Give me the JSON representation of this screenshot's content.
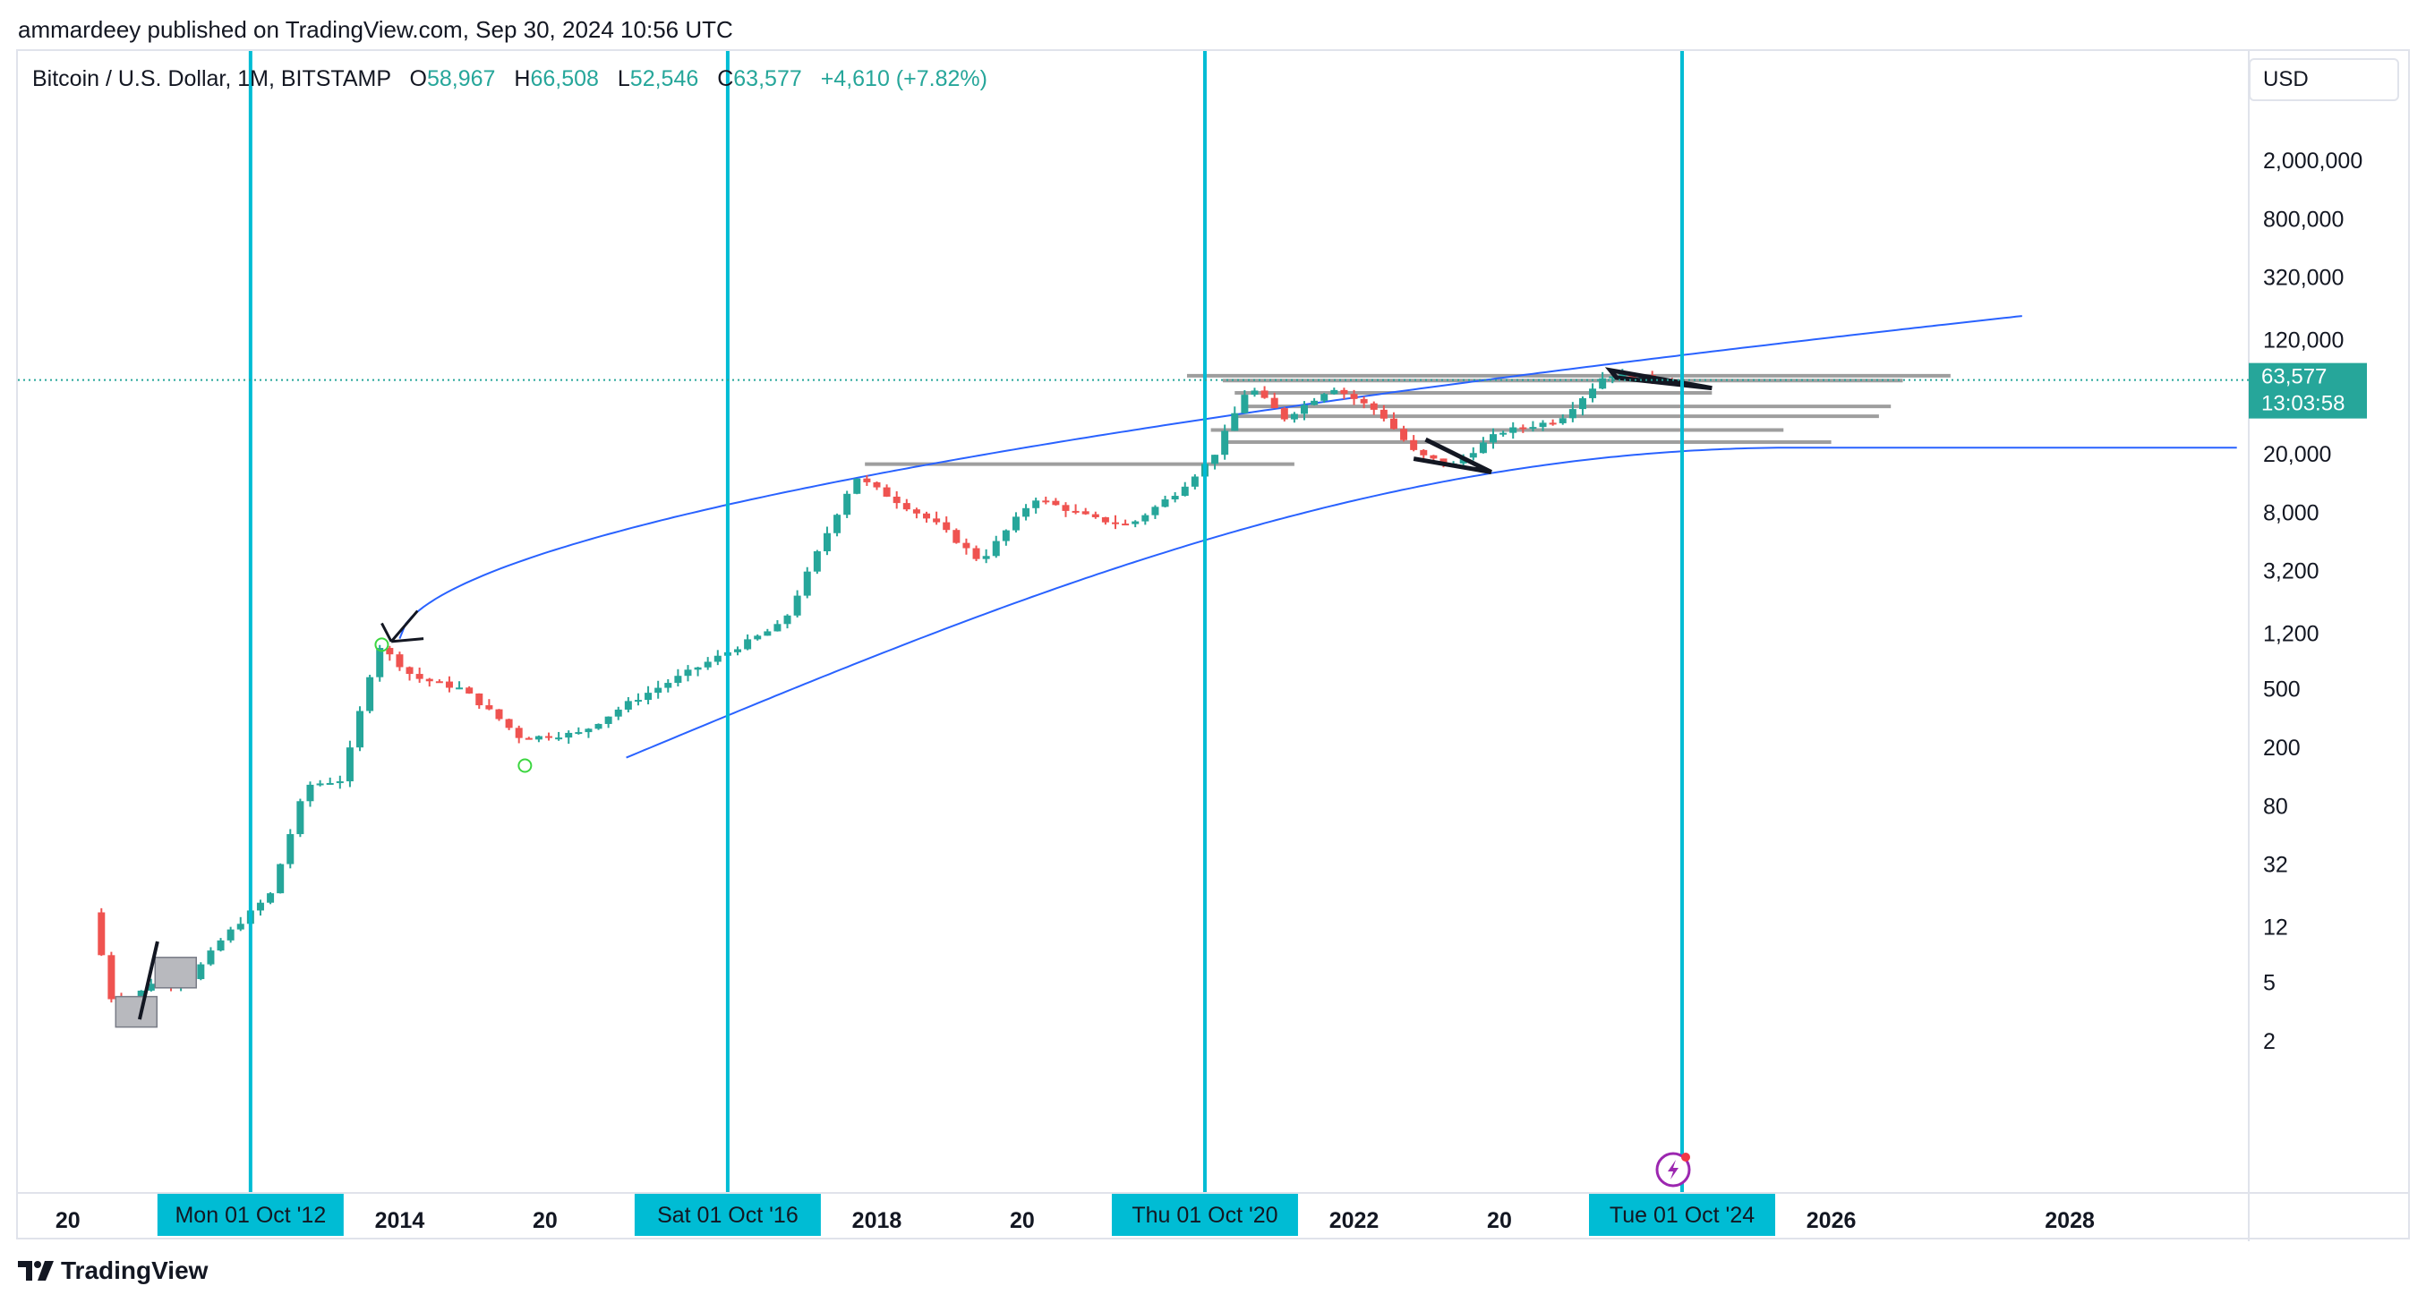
{
  "header": {
    "published_by": "ammardeey published on TradingView.com, Sep 30, 2024 10:56 UTC"
  },
  "legend": {
    "symbol": "Bitcoin / U.S. Dollar, 1M, BITSTAMP",
    "open_label": "O",
    "open": "58,967",
    "high_label": "H",
    "high": "66,508",
    "low_label": "L",
    "low": "52,546",
    "close_label": "C",
    "close": "63,577",
    "change": "+4,610 (+7.82%)"
  },
  "currency_button": "USD",
  "brand": "TradingView",
  "price_label": {
    "value": "63,577",
    "countdown": "13:03:58"
  },
  "colors": {
    "up": "#26a69a",
    "down": "#ef5350",
    "cycle_line": "#00bcd4",
    "curve": "#2962ff",
    "level": "#9e9e9e",
    "label_bg": "#00bcd4"
  },
  "chart_data": {
    "type": "candlestick",
    "title": "Bitcoin / U.S. Dollar, 1M, BITSTAMP",
    "scale": "log",
    "y_ticks": [
      "2,000,000",
      "800,000",
      "320,000",
      "120,000",
      "20,000",
      "8,000",
      "3,200",
      "1,200",
      "500",
      "200",
      "80",
      "32",
      "12",
      "5",
      "2"
    ],
    "y_tick_values": [
      2000000,
      800000,
      320000,
      120000,
      20000,
      8000,
      3200,
      1200,
      500,
      200,
      80,
      32,
      12,
      5,
      2
    ],
    "x_ticks": [
      "2014",
      "2018",
      "2022",
      "2026",
      "2028"
    ],
    "x_tick_years": [
      2014,
      2018,
      2022,
      2026,
      2028
    ],
    "x_partial_ticks": [
      "20",
      "20",
      "20",
      "20"
    ],
    "x_partial_years": [
      2012,
      2016,
      2020,
      2024
    ],
    "x_range": [
      2010.8,
      2029.5
    ],
    "cycle_markers": [
      {
        "label": "Mon 01 Oct '12",
        "year": 2012.75
      },
      {
        "label": "Sat 01 Oct '16",
        "year": 2016.75
      },
      {
        "label": "Thu 01 Oct '20",
        "year": 2020.75
      },
      {
        "label": "Tue 01 Oct '24",
        "year": 2024.75
      }
    ],
    "current_price": 63577,
    "series_yearly_path": [
      [
        2011.5,
        15
      ],
      [
        2011.7,
        3
      ],
      [
        2012.0,
        5
      ],
      [
        2012.3,
        5
      ],
      [
        2012.6,
        10
      ],
      [
        2013.0,
        20
      ],
      [
        2013.3,
        110
      ],
      [
        2013.6,
        120
      ],
      [
        2013.9,
        1000
      ],
      [
        2014.2,
        600
      ],
      [
        2014.6,
        500
      ],
      [
        2014.9,
        320
      ],
      [
        2015.1,
        230
      ],
      [
        2015.6,
        250
      ],
      [
        2016.0,
        400
      ],
      [
        2016.5,
        650
      ],
      [
        2016.9,
        950
      ],
      [
        2017.3,
        1400
      ],
      [
        2017.6,
        4500
      ],
      [
        2017.9,
        14000
      ],
      [
        2018.3,
        9000
      ],
      [
        2018.6,
        6500
      ],
      [
        2018.95,
        3700
      ],
      [
        2019.4,
        10000
      ],
      [
        2019.9,
        7200
      ],
      [
        2020.2,
        6500
      ],
      [
        2020.6,
        11000
      ],
      [
        2020.9,
        19000
      ],
      [
        2021.2,
        58000
      ],
      [
        2021.5,
        35000
      ],
      [
        2021.9,
        57000
      ],
      [
        2022.3,
        38000
      ],
      [
        2022.6,
        20000
      ],
      [
        2022.9,
        16500
      ],
      [
        2023.3,
        28000
      ],
      [
        2023.8,
        34000
      ],
      [
        2024.2,
        70000
      ],
      [
        2024.7,
        63577
      ]
    ]
  }
}
